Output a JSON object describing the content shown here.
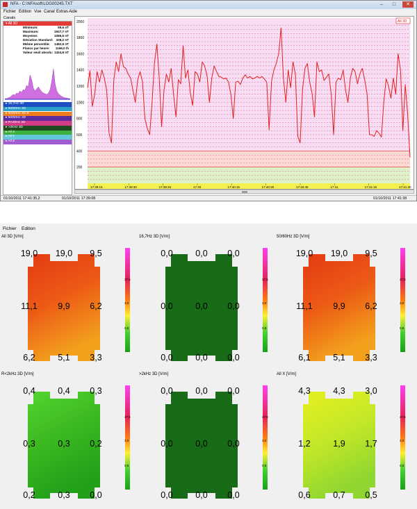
{
  "window": {
    "title": "NFA - C:\\NFAsoft\\LOG00245.TXT",
    "menu": [
      "Fichier",
      "Edition",
      "Vue",
      "Canal",
      "Extras",
      "Aide"
    ],
    "canals_label": "Canals",
    "window_buttons": [
      "–",
      "□",
      "✕"
    ]
  },
  "selected_channel": {
    "name": "All 3D",
    "stats": [
      {
        "label": "Minimum:",
        "value": "59,6 nT"
      },
      {
        "label": "Maximum:",
        "value": "1927,7 nT"
      },
      {
        "label": "Moyenne:",
        "value": "1086,6 nT"
      },
      {
        "label": "Déviation Standard:",
        "value": "338,2 nT"
      },
      {
        "label": "95ème percentile:",
        "value": "1482,9 nT"
      },
      {
        "label": "Flancs par heure:",
        "value": "1166,0 /h"
      },
      {
        "label": "Valeur seuil absolu:",
        "value": "1424,8 nT"
      }
    ]
  },
  "channels": [
    {
      "label": "16,7Hz 3D",
      "color": "#1e4fc2"
    },
    {
      "label": "50/60Hz 3D",
      "color": "#2aa0c8"
    },
    {
      "label": "50/60Hz 3D B",
      "color": "#ef7d1a"
    },
    {
      "label": "50/60Hz 3D",
      "color": "#5a2ca0"
    },
    {
      "label": "R<2kHz 3D",
      "color": "#d43b87"
    },
    {
      "label": ">2kHz 3D",
      "color": "#1e4a1e"
    },
    {
      "label": "All X",
      "color": "#3caf3c"
    },
    {
      "label": "All Y",
      "color": "#60c8d8"
    },
    {
      "label": "All Z",
      "color": "#a05cd0"
    }
  ],
  "plot": {
    "legend": "All 3D",
    "y_ticks": [
      "200",
      "400",
      "600",
      "800",
      "1000",
      "1200",
      "1400",
      "1600",
      "1800",
      "2000"
    ],
    "x_ticks": [
      "17:39:15",
      "17:39:30",
      "17:39:45",
      "17:40",
      "17:40:15",
      "17:40:30",
      "17:40:45",
      "17:41",
      "17:41:15",
      "17:41:30"
    ]
  },
  "status": {
    "left": "01/10/2011 17:41:35,2",
    "center": "01/10/2011 17:39:08",
    "right": "01/10/2011 17:41:38"
  },
  "chart_data": {
    "type": "line",
    "series": [
      {
        "name": "All 3D",
        "color": "#e32020",
        "values": [
          1180,
          1390,
          950,
          1100,
          1380,
          1250,
          1400,
          1300,
          1150,
          620,
          500,
          1280,
          1500,
          1380,
          1600,
          1440,
          1420,
          1350,
          1300,
          1150,
          1000,
          1280,
          1380,
          1250,
          800,
          680,
          600,
          1000,
          1480,
          1720,
          1300,
          700,
          1150,
          1350,
          1250,
          1420,
          1100,
          820,
          1280,
          1230,
          1700,
          1300,
          1400,
          1120,
          960,
          1380,
          1350,
          1250,
          1500,
          1450,
          1330,
          1000,
          1300,
          1450,
          1380,
          1320,
          1310,
          1290,
          1300,
          1250,
          1100,
          800,
          1250,
          1260,
          1220,
          1300,
          1340,
          1300,
          1320,
          1290,
          1300,
          1320,
          1300,
          1320,
          1290,
          1250,
          660,
          1260,
          1400,
          1480,
          1600,
          1920,
          1300,
          1000,
          1400,
          1180,
          1500,
          1350,
          580,
          500,
          1160,
          1420,
          1480,
          1250,
          1110,
          820,
          1500,
          1380,
          1400,
          1270,
          1310,
          1350,
          1100,
          600,
          1250,
          1300,
          1280,
          1400,
          1150,
          1000,
          1300,
          1420,
          1380,
          1230,
          1350,
          1420,
          1280,
          1110,
          600,
          600,
          580,
          650,
          620,
          570,
          1000,
          1290,
          1200,
          1050,
          1300,
          1100,
          1600,
          1400,
          650,
          1220,
          850,
          320
        ]
      }
    ],
    "ylim": [
      0,
      2000
    ],
    "x_tick_labels": [
      "17:39:15",
      "17:39:30",
      "17:39:45",
      "17:40",
      "17:40:15",
      "17:40:30",
      "17:40:45",
      "17:41",
      "17:41:15",
      "17:41:30"
    ],
    "hlines": [
      200,
      400
    ]
  },
  "window2": {
    "menu": [
      "Fichier",
      "Edition"
    ],
    "panels": [
      {
        "title": "All 3D [V/m]",
        "values": [
          [
            "19,0",
            "19,0",
            "9,5"
          ],
          [
            "11,1",
            "9,9",
            "6,2"
          ],
          [
            "6,2",
            "5,1",
            "3,3"
          ]
        ],
        "grad": [
          "#e43a12",
          "#ec5a16",
          "#f3a11c"
        ]
      },
      {
        "title": "16,7Hz 3D [V/m]",
        "values": [
          [
            "0,0",
            "0,0",
            "0,0"
          ],
          [
            "0,0",
            "0,0",
            "0,0"
          ],
          [
            "0,0",
            "0,0",
            "0,0"
          ]
        ],
        "grad": [
          "#186c18",
          "#186c18",
          "#186c18"
        ]
      },
      {
        "title": "50/60Hz 3D [V/m]",
        "values": [
          [
            "19,0",
            "19,0",
            "9,5"
          ],
          [
            "11,1",
            "9,9",
            "6,2"
          ],
          [
            "6,1",
            "5,1",
            "3,3"
          ]
        ],
        "grad": [
          "#e43a12",
          "#ec5a16",
          "#f3a11c"
        ]
      },
      {
        "title": "R<2kHz 3D [V/m]",
        "values": [
          [
            "0,4",
            "0,4",
            "0,3"
          ],
          [
            "0,3",
            "0,3",
            "0,2"
          ],
          [
            "0,2",
            "0,3",
            "0,0"
          ]
        ],
        "grad": [
          "#55d430",
          "#3cb820",
          "#22a01a"
        ]
      },
      {
        "title": ">2kHz 3D [V/m]",
        "values": [
          [
            "0,0",
            "0,0",
            "0,0"
          ],
          [
            "0,0",
            "0,0",
            "0,0"
          ],
          [
            "0,0",
            "0,0",
            "0,0"
          ]
        ],
        "grad": [
          "#186c18",
          "#186c18",
          "#186c18"
        ]
      },
      {
        "title": "All X [V/m]",
        "values": [
          [
            "4,3",
            "4,3",
            "3,0"
          ],
          [
            "1,2",
            "1,9",
            "1,7"
          ],
          [
            "0,6",
            "0,7",
            "0,5"
          ]
        ],
        "grad": [
          "#e6f020",
          "#c4e828",
          "#8fd630"
        ]
      }
    ],
    "colorbar_labels": [
      "27,5",
      "3,0",
      "0,5"
    ]
  }
}
